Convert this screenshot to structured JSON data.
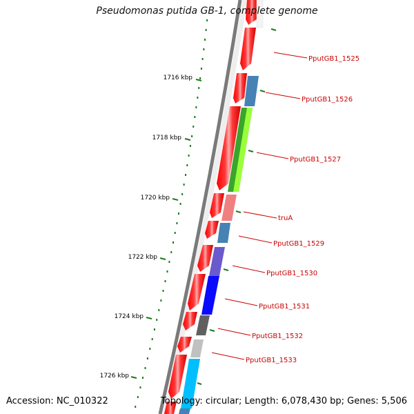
{
  "title": "Pseudomonas putida GB-1, complete genome",
  "footer": {
    "accession": "Accession: NC_010322",
    "summary": "Topology: circular; Length: 6,078,430 bp; Genes: 5,506"
  },
  "scale_labels": [
    "1716 kbp",
    "1718 kbp",
    "1720 kbp",
    "1722 kbp",
    "1724 kbp",
    "1726 kbp"
  ],
  "gene_labels": [
    "PputGB1_1525",
    "PputGB1_1526",
    "PputGB1_1527",
    "truA",
    "PputGB1_1529",
    "PputGB1_1530",
    "PputGB1_1531",
    "PputGB1_1532",
    "PputGB1_1533"
  ],
  "colors": {
    "cds_red": "#ff0000",
    "label_red": "#cc0000",
    "backbone": "#808080",
    "tick_green": "#1a7a1a",
    "steelblue": "#4682b4",
    "lime": "#7fff00",
    "green": "#228b22",
    "pink": "#f08080",
    "purple": "#6a5acd",
    "blue": "#0000ff",
    "darkgray": "#606060",
    "lightgray": "#c0c0c0",
    "skyblue": "#00bfff"
  }
}
